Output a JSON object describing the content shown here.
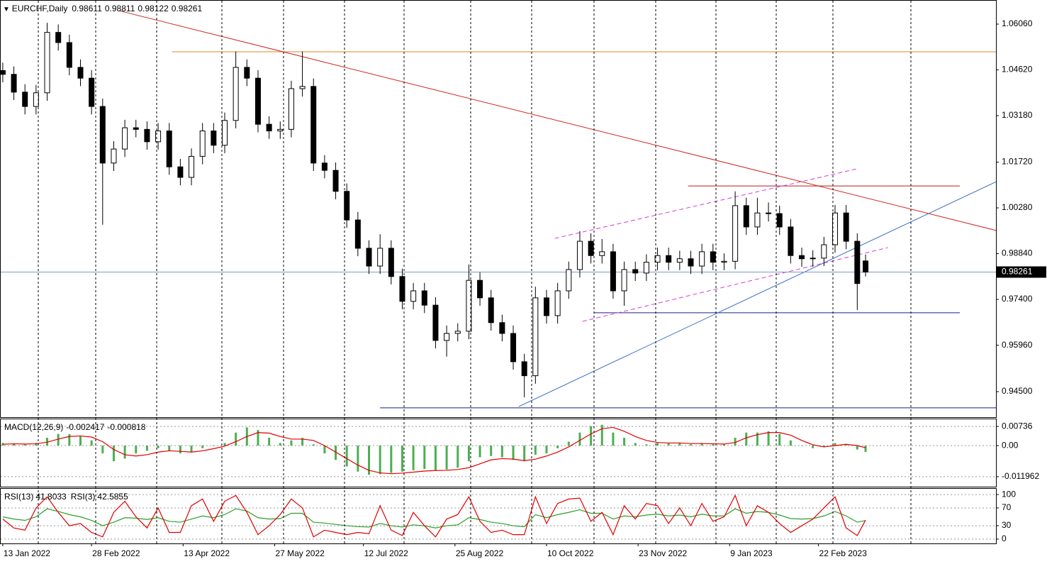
{
  "chart_data": [
    {
      "type": "candlestick",
      "title": "EURCHF,Daily",
      "x": [
        0,
        4,
        8,
        12,
        16,
        20,
        24,
        28,
        32,
        36,
        40,
        44,
        48,
        52,
        56,
        60,
        64,
        68,
        72,
        76,
        80,
        84,
        88,
        92,
        96,
        100,
        104,
        108,
        112,
        116,
        120,
        124,
        128,
        132,
        136,
        140,
        144,
        148,
        152,
        156,
        160,
        164,
        168,
        172,
        176,
        180,
        184,
        188,
        192,
        196,
        200,
        204,
        208,
        212,
        216,
        220,
        224,
        228,
        232,
        236,
        240,
        244,
        248,
        252,
        256,
        260,
        264,
        268,
        272,
        276,
        280,
        284,
        288,
        292,
        296,
        300,
        304,
        308,
        311
      ],
      "open": [
        1.046,
        1.0448,
        1.0392,
        1.0347,
        1.039,
        1.058,
        1.0548,
        1.047,
        1.0436,
        1.0347,
        1.0169,
        1.0213,
        1.028,
        1.0275,
        1.0236,
        1.027,
        1.0157,
        1.0124,
        1.019,
        1.027,
        1.0225,
        1.0303,
        1.047,
        1.0436,
        1.0291,
        1.027,
        1.0275,
        1.0403,
        1.041,
        1.0169,
        1.0146,
        1.008,
        0.999,
        0.9901,
        0.9845,
        0.9901,
        0.9812,
        0.9734,
        0.9767,
        0.9722,
        0.9611,
        0.9633,
        0.964,
        0.98,
        0.9745,
        0.9667,
        0.9633,
        0.9544,
        0.95,
        0.9745,
        0.9689,
        0.9767,
        0.9834,
        0.9923,
        0.9878,
        0.989,
        0.9767,
        0.9834,
        0.9823,
        0.9857,
        0.9878,
        0.9857,
        0.9868,
        0.9845,
        0.989,
        0.9857,
        0.986,
        1.0035,
        0.9968,
        1.0012,
        1.001,
        0.9968,
        0.9878,
        0.9868,
        0.987,
        0.9912,
        1.0012,
        0.9923,
        0.98611
      ],
      "high": [
        1.0485,
        1.0473,
        1.0417,
        1.0415,
        1.061,
        1.0605,
        1.0573,
        1.0495,
        1.0461,
        1.0372,
        1.0238,
        1.0305,
        1.0305,
        1.03,
        1.0295,
        1.0295,
        1.0182,
        1.0215,
        1.0295,
        1.0295,
        1.0328,
        1.052,
        1.0495,
        1.0461,
        1.0316,
        1.03,
        1.0428,
        1.052,
        1.0435,
        1.0194,
        1.0171,
        1.0105,
        1.0015,
        0.9926,
        0.9945,
        0.9926,
        0.9837,
        0.9792,
        0.9792,
        0.9747,
        0.9658,
        0.9665,
        0.985,
        0.9825,
        0.977,
        0.9692,
        0.9658,
        0.9569,
        0.978,
        0.977,
        0.9792,
        0.9859,
        0.9955,
        0.9948,
        0.993,
        0.9915,
        0.9859,
        0.9859,
        0.9882,
        0.9903,
        0.9903,
        0.9893,
        0.9893,
        0.9915,
        0.9915,
        0.9885,
        1.008,
        1.006,
        1.006,
        1.0045,
        1.0035,
        0.9993,
        0.9903,
        0.9895,
        0.9937,
        1.0037,
        1.0037,
        0.9948,
        0.98811
      ],
      "low": [
        1.0423,
        1.0367,
        1.0322,
        1.0322,
        1.0365,
        1.0523,
        1.0445,
        1.0411,
        1.0322,
        0.9975,
        1.0144,
        1.0188,
        1.025,
        1.0211,
        1.0211,
        1.0132,
        1.0099,
        1.0099,
        1.0165,
        1.02,
        1.02,
        1.0278,
        1.0411,
        1.0266,
        1.0245,
        1.0245,
        1.025,
        1.0378,
        1.0144,
        1.0121,
        1.0055,
        0.9965,
        0.9876,
        0.982,
        0.982,
        0.9787,
        0.9709,
        0.9709,
        0.9697,
        0.9586,
        0.956,
        0.9608,
        0.9615,
        0.972,
        0.9642,
        0.9608,
        0.9519,
        0.9432,
        0.9475,
        0.9664,
        0.9664,
        0.9742,
        0.9809,
        0.9853,
        0.9853,
        0.9742,
        0.972,
        0.9798,
        0.9798,
        0.9832,
        0.9832,
        0.9832,
        0.982,
        0.982,
        0.9832,
        0.9832,
        0.9835,
        0.9943,
        0.9943,
        0.9985,
        0.9943,
        0.9853,
        0.9843,
        0.9843,
        0.9845,
        0.9887,
        0.9898,
        0.9707,
        0.98122
      ],
      "close": [
        1.0448,
        1.0392,
        1.0347,
        1.039,
        1.058,
        1.0548,
        1.047,
        1.0436,
        1.0347,
        1.0169,
        1.0213,
        1.028,
        1.0275,
        1.0236,
        1.027,
        1.0157,
        1.0124,
        1.019,
        1.027,
        1.0225,
        1.0303,
        1.047,
        1.0436,
        1.0291,
        1.027,
        1.0275,
        1.0403,
        1.041,
        1.0169,
        1.0146,
        1.008,
        0.999,
        0.9901,
        0.9845,
        0.9901,
        0.9812,
        0.9734,
        0.9767,
        0.9722,
        0.9611,
        0.9633,
        0.964,
        0.98,
        0.9745,
        0.9667,
        0.9633,
        0.9544,
        0.95,
        0.9745,
        0.9689,
        0.9767,
        0.9834,
        0.9923,
        0.9878,
        0.989,
        0.9767,
        0.9834,
        0.9823,
        0.9857,
        0.9878,
        0.9857,
        0.9868,
        0.9845,
        0.989,
        0.9857,
        0.986,
        1.0035,
        0.9968,
        1.0012,
        1.001,
        0.9968,
        0.9878,
        0.9868,
        0.987,
        0.9912,
        1.0012,
        0.9923,
        0.979,
        0.98261
      ],
      "bull_color": "#ffffff",
      "bear_color": "#000000",
      "last_price_color": "#7f9cc0",
      "xlim": [
        -1,
        358
      ],
      "ylim": [
        0.93697,
        1.06819
      ],
      "yticks": [
        {
          "value": 1.0606,
          "label": "1.06060"
        },
        {
          "value": 1.0462,
          "label": "1.04620"
        },
        {
          "value": 1.0318,
          "label": "1.03180"
        },
        {
          "value": 1.0172,
          "label": "1.01720"
        },
        {
          "value": 1.0028,
          "label": "1.00280"
        },
        {
          "value": 0.9884,
          "label": "0.98840"
        },
        {
          "value": 0.974,
          "label": "0.97400"
        },
        {
          "value": 0.9596,
          "label": "0.95960"
        },
        {
          "value": 0.945,
          "label": "0.94500"
        }
      ],
      "xticks": [
        {
          "value": 0,
          "label": "13 Jan 2022"
        },
        {
          "value": 32,
          "label": "28 Feb 2022"
        },
        {
          "value": 65,
          "label": "13 Apr 2022"
        },
        {
          "value": 98,
          "label": "27 May 2022"
        },
        {
          "value": 130,
          "label": "12 Jul 2022"
        },
        {
          "value": 163,
          "label": "25 Aug 2022"
        },
        {
          "value": 196,
          "label": "10 Oct 2022"
        },
        {
          "value": 229,
          "label": "23 Nov 2022"
        },
        {
          "value": 262,
          "label": "9 Jan 2023"
        },
        {
          "value": 294,
          "label": "22 Feb 2023"
        }
      ],
      "lines": [
        {
          "color": "#e0862a",
          "x": [
            61,
            358
          ],
          "values": [
            1.0519,
            1.0519
          ]
        },
        {
          "color": "#d0261e",
          "x": [
            42,
            358
          ],
          "values": [
            1.0648,
            0.9957
          ]
        },
        {
          "color": "#1a237e",
          "x": [
            136,
            358
          ],
          "values": [
            0.9399,
            0.9399
          ]
        },
        {
          "color": "#1a237e",
          "x": [
            213,
            345
          ],
          "values": [
            0.9698,
            0.9698
          ]
        },
        {
          "color": "#b71c1c",
          "x": [
            247,
            345
          ],
          "values": [
            1.0097,
            1.0097
          ]
        },
        {
          "color": "#3a6fc4",
          "x": [
            186,
            358
          ],
          "values": [
            0.9403,
            1.011
          ]
        },
        {
          "color": "#d63bd6",
          "x": [
            199,
            308
          ],
          "values": [
            0.9932,
            1.0151
          ],
          "dash": true
        },
        {
          "color": "#d63bd6",
          "x": [
            209,
            319
          ],
          "values": [
            0.9671,
            0.9903
          ],
          "dash": true
        }
      ]
    },
    {
      "type": "macd",
      "title": "MACD(12,26,9)",
      "series": [
        {
          "color": "#4caf50",
          "values": [
            0.001,
            0.0008,
            0.0004,
            0.001,
            0.003,
            0.0045,
            0.0044,
            0.0035,
            0.002,
            -0.003,
            -0.006,
            -0.005,
            -0.003,
            -0.002,
            -0.001,
            -0.002,
            -0.003,
            -0.0025,
            -0.001,
            -0.0002,
            0.001,
            0.005,
            0.007,
            0.006,
            0.003,
            0.001,
            0.002,
            0.003,
            0.0005,
            -0.003,
            -0.0055,
            -0.008,
            -0.01,
            -0.0112,
            -0.011,
            -0.0105,
            -0.01,
            -0.0095,
            -0.009,
            -0.0095,
            -0.0092,
            -0.0085,
            -0.006,
            -0.0045,
            -0.004,
            -0.0045,
            -0.0055,
            -0.006,
            -0.0035,
            -0.003,
            -0.001,
            0.0015,
            0.005,
            0.0075,
            0.008,
            0.005,
            0.003,
            0.001,
            0.0005,
            0.001,
            0.0008,
            0.001,
            0.0005,
            0.001,
            0.0005,
            0.0005,
            0.003,
            0.005,
            0.005,
            0.0055,
            0.0045,
            0.002,
            0.0,
            -0.001,
            -0.0005,
            0.001,
            0.0005,
            -0.0015,
            -0.002417
          ]
        },
        {
          "color": "#e00000",
          "values": [
            0.0005,
            0.0007,
            0.0006,
            0.0007,
            0.0013,
            0.0025,
            0.0035,
            0.0037,
            0.0033,
            0.0015,
            -0.0015,
            -0.0035,
            -0.004,
            -0.0035,
            -0.0025,
            -0.002,
            -0.0022,
            -0.0025,
            -0.002,
            -0.0012,
            -0.0002,
            0.0015,
            0.0035,
            0.005,
            0.0048,
            0.0035,
            0.0025,
            0.0025,
            0.002,
            0.0,
            -0.0025,
            -0.005,
            -0.0075,
            -0.0095,
            -0.0105,
            -0.0108,
            -0.0106,
            -0.0102,
            -0.0098,
            -0.0096,
            -0.0095,
            -0.0092,
            -0.0085,
            -0.007,
            -0.0055,
            -0.005,
            -0.0052,
            -0.0058,
            -0.0052,
            -0.004,
            -0.0025,
            -0.0005,
            0.002,
            0.0045,
            0.0065,
            0.007,
            0.0055,
            0.0035,
            0.002,
            0.0012,
            0.001,
            0.001,
            0.0008,
            0.0008,
            0.0007,
            0.0006,
            0.0012,
            0.003,
            0.0042,
            0.005,
            0.005,
            0.004,
            0.002,
            0.0003,
            -0.0005,
            0.0,
            0.0005,
            0.0,
            -0.000818
          ]
        }
      ],
      "ylim": [
        -0.0158,
        0.0104
      ],
      "yticks": [
        0.00736,
        {
          "value": 0,
          "label": "0.00"
        },
        -0.011962
      ]
    },
    {
      "type": "line",
      "series": [
        {
          "name": "RSI(13)",
          "color": "#2ca02c",
          "values": [
            50,
            45,
            42,
            50,
            68,
            62,
            55,
            50,
            42,
            30,
            38,
            48,
            47,
            44,
            48,
            40,
            38,
            45,
            52,
            48,
            55,
            68,
            63,
            48,
            45,
            46,
            58,
            58,
            38,
            36,
            33,
            30,
            28,
            27,
            35,
            30,
            27,
            32,
            30,
            25,
            30,
            32,
            48,
            44,
            38,
            35,
            30,
            28,
            55,
            48,
            55,
            60,
            66,
            58,
            58,
            45,
            52,
            50,
            54,
            56,
            52,
            54,
            50,
            56,
            52,
            52,
            68,
            58,
            62,
            60,
            54,
            46,
            45,
            46,
            52,
            62,
            52,
            38,
            41.8033
          ]
        },
        {
          "name": "RSI(3)",
          "color": "#e00000",
          "values": [
            45,
            25,
            20,
            70,
            95,
            60,
            30,
            35,
            15,
            5,
            60,
            85,
            50,
            25,
            70,
            15,
            15,
            75,
            90,
            40,
            85,
            98,
            60,
            10,
            30,
            55,
            90,
            70,
            5,
            20,
            15,
            10,
            15,
            12,
            75,
            20,
            8,
            60,
            30,
            5,
            45,
            55,
            95,
            40,
            15,
            20,
            10,
            10,
            95,
            35,
            80,
            90,
            92,
            40,
            60,
            10,
            75,
            45,
            80,
            75,
            35,
            70,
            30,
            80,
            40,
            50,
            98,
            30,
            75,
            60,
            35,
            15,
            30,
            45,
            70,
            95,
            25,
            8,
            42.5855
          ]
        }
      ],
      "ylim": [
        -9.7,
        114.5
      ],
      "yticks": [
        100,
        70,
        30,
        0
      ]
    }
  ]
}
